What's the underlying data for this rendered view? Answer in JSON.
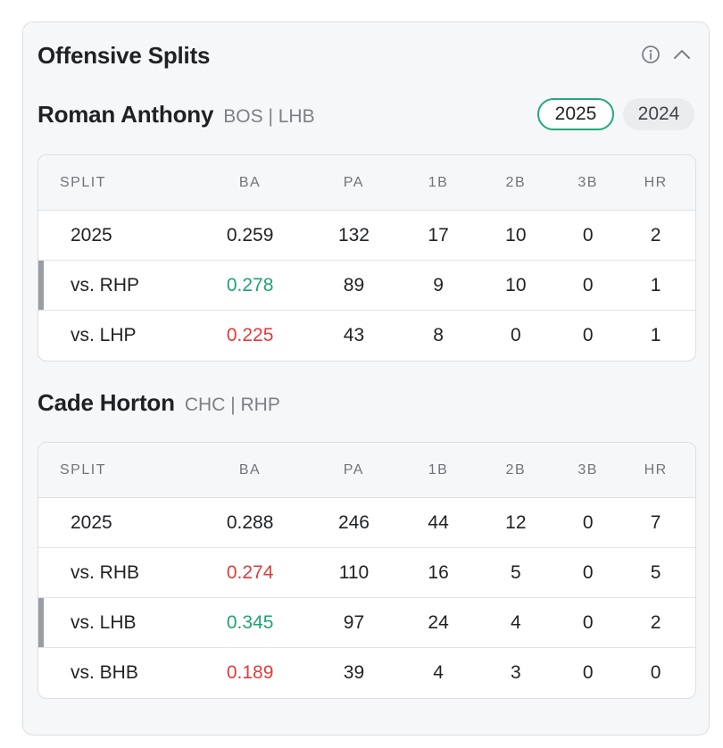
{
  "panel": {
    "title": "Offensive Splits",
    "info_icon": "info-icon",
    "collapse_icon": "chevron-up-icon"
  },
  "season_toggle": {
    "options": [
      "2025",
      "2024"
    ],
    "selected": "2025"
  },
  "columns": [
    "SPLIT",
    "BA",
    "PA",
    "1B",
    "2B",
    "3B",
    "HR"
  ],
  "batter": {
    "name": "Roman Anthony",
    "team": "BOS",
    "separator": "|",
    "hand": "LHB",
    "rows": [
      {
        "split": "2025",
        "ba": "0.259",
        "pa": "132",
        "b1": "17",
        "b2": "10",
        "b3": "0",
        "hr": "2",
        "tone": "neutral",
        "highlight": false
      },
      {
        "split": "vs. RHP",
        "ba": "0.278",
        "pa": "89",
        "b1": "9",
        "b2": "10",
        "b3": "0",
        "hr": "1",
        "tone": "good",
        "highlight": true
      },
      {
        "split": "vs. LHP",
        "ba": "0.225",
        "pa": "43",
        "b1": "8",
        "b2": "0",
        "b3": "0",
        "hr": "1",
        "tone": "bad",
        "highlight": false
      }
    ]
  },
  "pitcher": {
    "name": "Cade Horton",
    "team": "CHC",
    "separator": "|",
    "hand": "RHP",
    "rows": [
      {
        "split": "2025",
        "ba": "0.288",
        "pa": "246",
        "b1": "44",
        "b2": "12",
        "b3": "0",
        "hr": "7",
        "tone": "neutral",
        "highlight": false
      },
      {
        "split": "vs. RHB",
        "ba": "0.274",
        "pa": "110",
        "b1": "16",
        "b2": "5",
        "b3": "0",
        "hr": "5",
        "tone": "bad",
        "highlight": false
      },
      {
        "split": "vs. LHB",
        "ba": "0.345",
        "pa": "97",
        "b1": "24",
        "b2": "4",
        "b3": "0",
        "hr": "2",
        "tone": "good",
        "highlight": true
      },
      {
        "split": "vs. BHB",
        "ba": "0.189",
        "pa": "39",
        "b1": "4",
        "b2": "3",
        "b3": "0",
        "hr": "0",
        "tone": "bad",
        "highlight": false
      }
    ]
  },
  "colors": {
    "good": "#1fa374",
    "bad": "#e23b3b",
    "accent": "#22a97a"
  }
}
